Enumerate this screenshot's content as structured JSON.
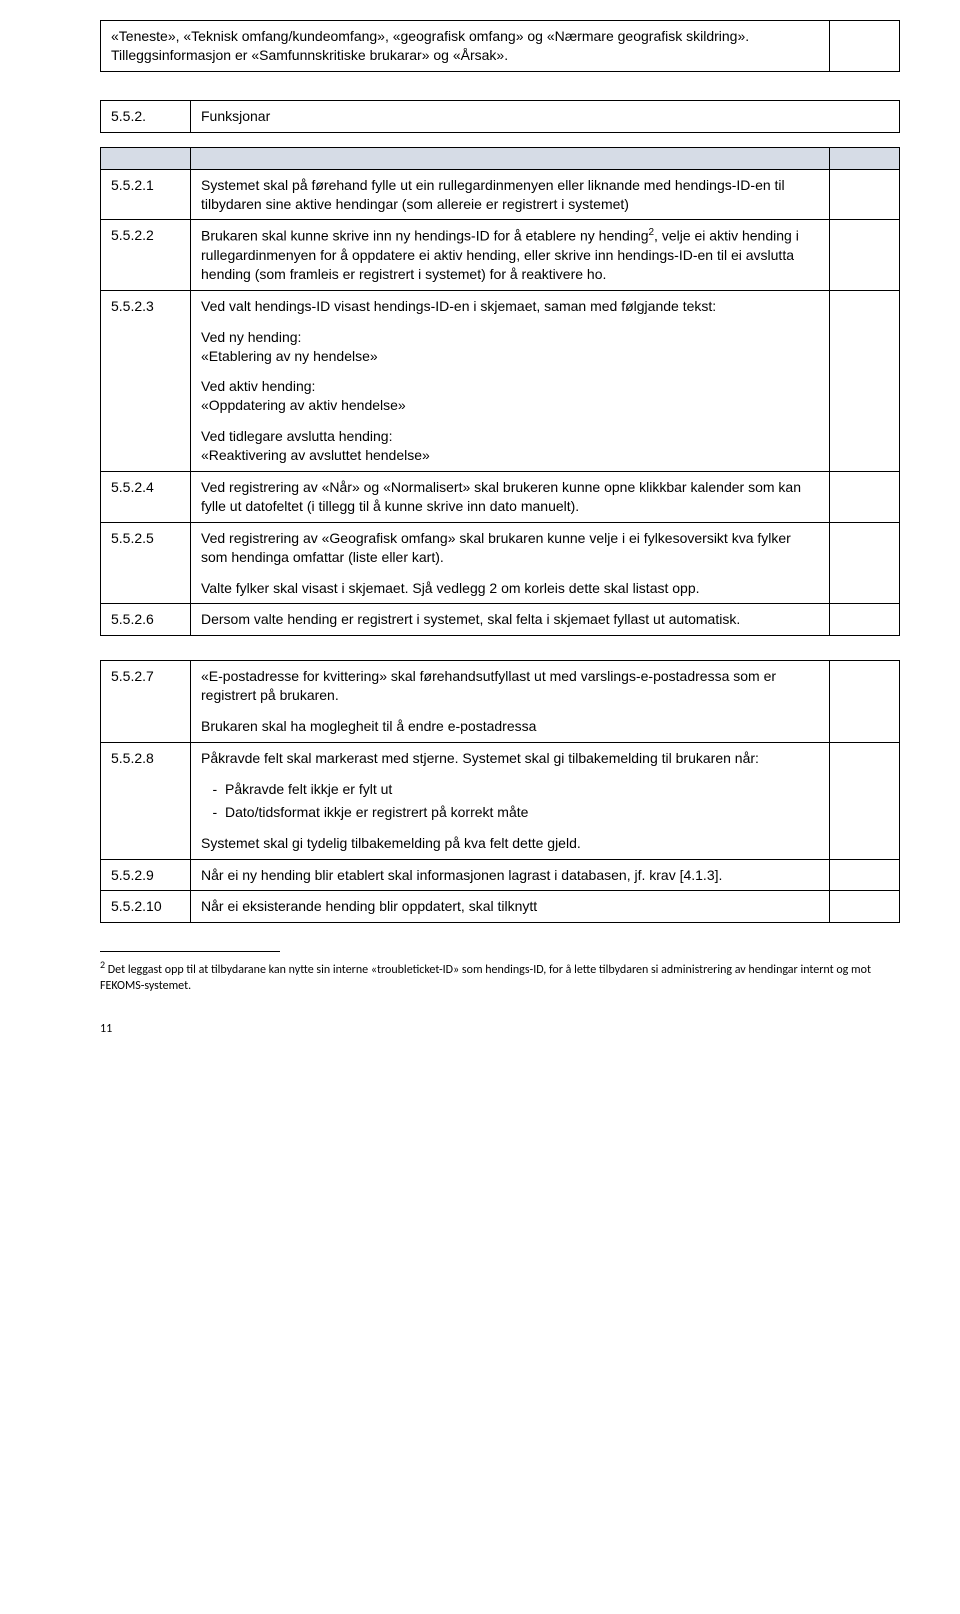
{
  "intro": {
    "text": "«Teneste», «Teknisk omfang/kundeomfang», «geografisk omfang» og «Nærmare geografisk skildring». Tilleggsinformasjon er «Samfunnskritiske brukarar» og «Årsak»."
  },
  "section": {
    "number": "5.5.2.",
    "title": "Funksjonar"
  },
  "rows": [
    {
      "id": "5.5.2.1",
      "paras": [
        "Systemet skal på førehand fylle ut ein rullegardinmenyen eller liknande med hendings-ID-en til tilbydaren sine aktive hendingar (som allereie er registrert i systemet)"
      ]
    },
    {
      "id": "5.5.2.2",
      "parasHtml": [
        "Brukaren skal kunne skrive inn ny hendings-ID for å etablere ny hending<sup class='fn'>2</sup>, velje ei aktiv hending i rullegardinmenyen for å oppdatere ei aktiv hending, eller skrive inn hendings-ID-en til ei avslutta hending (som framleis er registrert i systemet) for å reaktivere ho."
      ]
    },
    {
      "id": "5.5.2.3",
      "paras": [
        "Ved valt hendings-ID visast hendings-ID-en i skjemaet, saman med følgjande tekst:",
        "Ved ny hending:\n«Etablering av ny hendelse»",
        "Ved aktiv hending:\n«Oppdatering av aktiv hendelse»",
        "Ved tidlegare avslutta hending:\n«Reaktivering av avsluttet hendelse»"
      ]
    },
    {
      "id": "5.5.2.4",
      "paras": [
        "Ved registrering av «Når» og «Normalisert» skal brukeren kunne opne klikkbar kalender som kan fylle ut datofeltet (i tillegg til å kunne skrive inn dato manuelt)."
      ]
    },
    {
      "id": "5.5.2.5",
      "paras": [
        "Ved registrering av «Geografisk omfang» skal brukaren kunne velje i ei fylkesoversikt kva fylker som hendinga omfattar (liste eller kart).",
        "Valte fylker skal visast i skjemaet. Sjå vedlegg 2 om korleis dette skal listast opp."
      ]
    },
    {
      "id": "5.5.2.6",
      "paras": [
        "Dersom valte hending er registrert i systemet, skal felta i skjemaet fyllast ut automatisk."
      ]
    }
  ],
  "rows2": [
    {
      "id": "5.5.2.7",
      "paras": [
        "«E-postadresse for kvittering» skal førehandsutfyllast ut med varslings-e-postadressa som er registrert på brukaren.",
        "Brukaren skal ha moglegheit til å endre e-postadressa"
      ]
    },
    {
      "id": "5.5.2.8",
      "paras": [
        "Påkravde felt skal markerast med stjerne. Systemet skal gi tilbakemelding til brukaren når:"
      ],
      "bullets": [
        "Påkravde felt ikkje er fylt ut",
        "Dato/tidsformat ikkje er registrert på korrekt måte"
      ],
      "parasAfter": [
        "Systemet skal gi tydelig tilbakemelding på kva felt dette gjeld."
      ]
    },
    {
      "id": "5.5.2.9",
      "paras": [
        "Når ei ny hending blir etablert skal informasjonen lagrast i databasen, jf. krav [4.1.3]."
      ]
    },
    {
      "id": "5.5.2.10",
      "paras": [
        "Når ei eksisterande hending blir oppdatert, skal tilknytt"
      ]
    }
  ],
  "footnote": {
    "marker": "2",
    "text": "Det leggast opp til at tilbydarane kan nytte sin interne «troubleticket-ID» som hendings-ID, for å lette tilbydaren si administrering av hendingar internt og mot FEKOMS-systemet."
  },
  "pageNumber": "11"
}
